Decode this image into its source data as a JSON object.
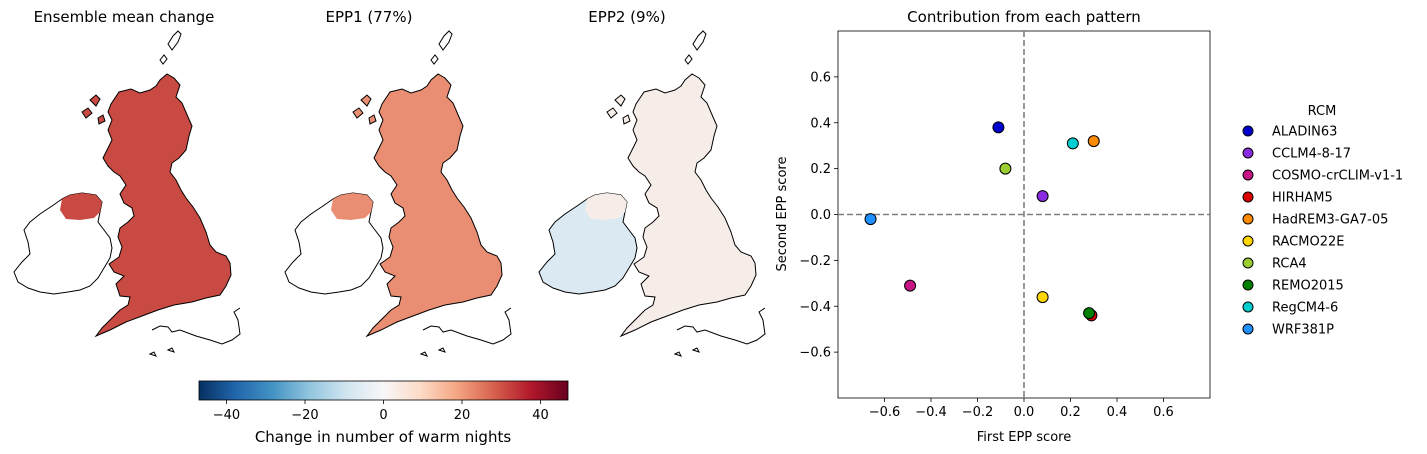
{
  "maps": {
    "titles": [
      "Ensemble mean change",
      "EPP1 (77%)",
      "EPP2 (9%)"
    ],
    "panels": [
      {
        "fill": "#c84a42",
        "ireland_fill": "#d9574d",
        "level": 28
      },
      {
        "fill": "#ea8e73",
        "ireland_fill": "#ef9f84",
        "level": 15
      },
      {
        "fill": "#f7ede8",
        "ireland_fill": "#dbe9f3",
        "level": 2
      }
    ]
  },
  "colorbar": {
    "label": "Change in number of warm nights",
    "ticks": [
      "−40",
      "−20",
      "0",
      "20",
      "40"
    ],
    "tick_values": [
      -40,
      -20,
      0,
      20,
      40
    ],
    "range": [
      -47,
      47
    ],
    "stops": [
      "#053061",
      "#2166ac",
      "#4393c3",
      "#92c5de",
      "#d1e5f0",
      "#f7f7f7",
      "#fddbc7",
      "#f4a582",
      "#d6604d",
      "#b2182b",
      "#67001f"
    ]
  },
  "chart_data": {
    "type": "scatter",
    "title": "Contribution from each pattern",
    "xlabel": "First EPP score",
    "ylabel": "Second EPP score",
    "xlim": [
      -0.8,
      0.8
    ],
    "ylim": [
      -0.8,
      0.8
    ],
    "xticks": [
      -0.6,
      -0.4,
      -0.2,
      0.0,
      0.2,
      0.4,
      0.6
    ],
    "xtick_labels": [
      "−0.6",
      "−0.4",
      "−0.2",
      "0.0",
      "0.2",
      "0.4",
      "0.6"
    ],
    "yticks": [
      0.6,
      0.4,
      0.2,
      0.0,
      -0.2,
      -0.4,
      -0.6
    ],
    "ytick_labels": [
      "0.6",
      "0.4",
      "0.2",
      "0.0",
      "−0.2",
      "−0.4",
      "−0.6"
    ],
    "reference_lines": {
      "x": 0,
      "y": 0,
      "style": "dashed"
    },
    "legend_title": "RCM",
    "legend_position": "right",
    "series": [
      {
        "name": "ALADIN63",
        "color": "#0000cd",
        "x": -0.11,
        "y": 0.38
      },
      {
        "name": "CCLM4-8-17",
        "color": "#8a2be2",
        "x": 0.08,
        "y": 0.08
      },
      {
        "name": "COSMO-crCLIM-v1-1",
        "color": "#c71585",
        "x": -0.49,
        "y": -0.31
      },
      {
        "name": "HIRHAM5",
        "color": "#dd0000",
        "x": 0.29,
        "y": -0.44
      },
      {
        "name": "HadREM3-GA7-05",
        "color": "#ff8c00",
        "x": 0.3,
        "y": 0.32
      },
      {
        "name": "RACMO22E",
        "color": "#ffd700",
        "x": 0.08,
        "y": -0.36
      },
      {
        "name": "RCA4",
        "color": "#9acd32",
        "x": -0.08,
        "y": 0.2
      },
      {
        "name": "REMO2015",
        "color": "#008000",
        "x": 0.28,
        "y": -0.43
      },
      {
        "name": "RegCM4-6",
        "color": "#00ced1",
        "x": 0.21,
        "y": 0.31
      },
      {
        "name": "WRF381P",
        "color": "#1e90ff",
        "x": -0.66,
        "y": -0.02
      }
    ]
  }
}
